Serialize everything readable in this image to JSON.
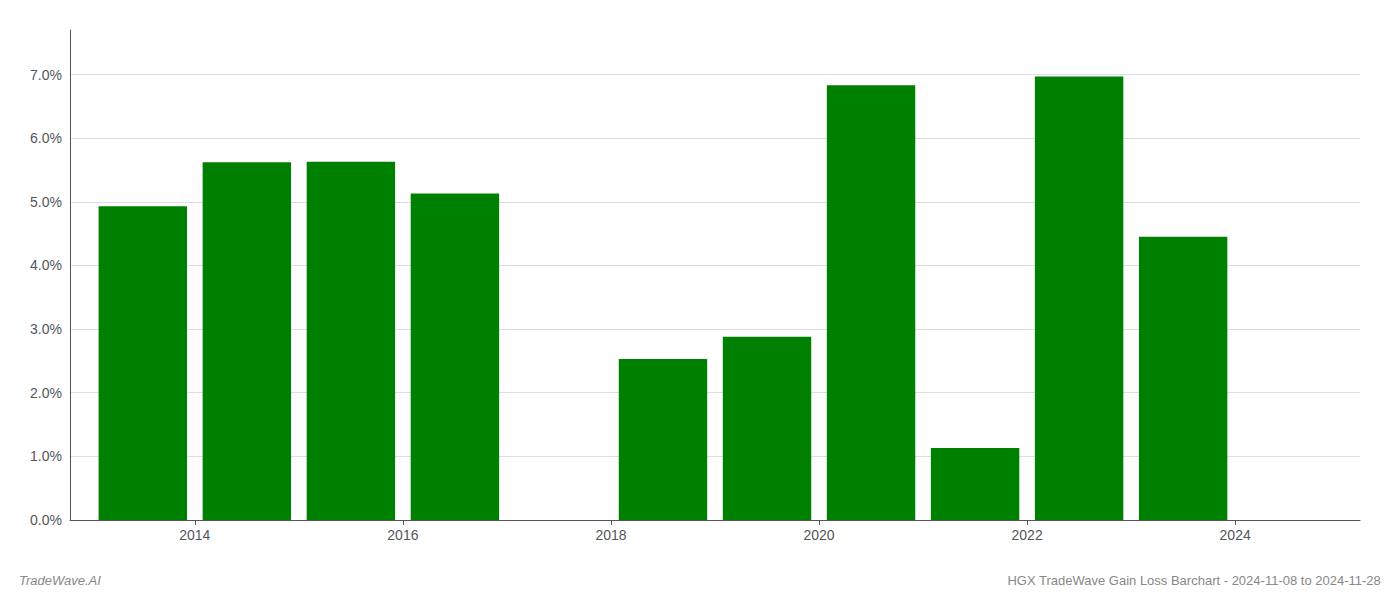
{
  "chart_data": {
    "type": "bar",
    "title": "HGX TradeWave Gain Loss Barchart - 2024-11-08 to 2024-11-28",
    "subtitle": "TradeWave.AI",
    "x": [
      2013,
      2014,
      2015,
      2016,
      2018,
      2019,
      2020,
      2021,
      2022,
      2023
    ],
    "values": [
      0.0493,
      0.0562,
      0.0563,
      0.0513,
      0.0253,
      0.0288,
      0.0683,
      0.0113,
      0.0697,
      0.0445
    ],
    "color": "#008000",
    "xlim": [
      2012.3,
      2024.7
    ],
    "xticks": [
      {
        "value": 2013.5,
        "label": "2014"
      },
      {
        "value": 2015.5,
        "label": "2016"
      },
      {
        "value": 2017.5,
        "label": "2018"
      },
      {
        "value": 2019.5,
        "label": "2020"
      },
      {
        "value": 2021.5,
        "label": "2022"
      },
      {
        "value": 2023.5,
        "label": "2024"
      }
    ],
    "ylim": [
      0,
      0.077
    ],
    "yticks": [
      {
        "value": 0.0,
        "label": "0.0%"
      },
      {
        "value": 0.01,
        "label": "1.0%"
      },
      {
        "value": 0.02,
        "label": "2.0%"
      },
      {
        "value": 0.03,
        "label": "3.0%"
      },
      {
        "value": 0.04,
        "label": "4.0%"
      },
      {
        "value": 0.05,
        "label": "5.0%"
      },
      {
        "value": 0.06,
        "label": "6.0%"
      },
      {
        "value": 0.07,
        "label": "7.0%"
      }
    ],
    "grid": true
  }
}
